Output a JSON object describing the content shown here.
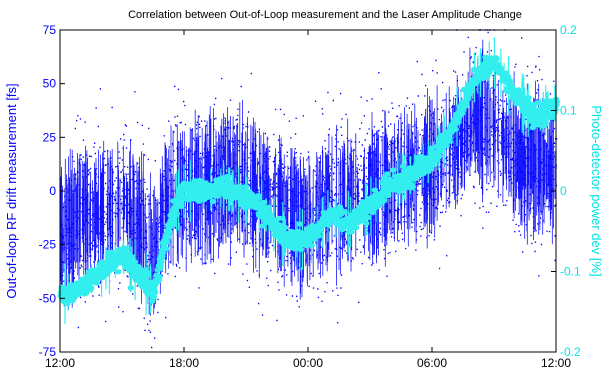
{
  "chart_data": {
    "type": "scatter",
    "title": "Correlation between Out-of-Loop measurement and the Laser Amplitude Change",
    "xlabel": "",
    "x_tick_labels": [
      "12:00",
      "18:00",
      "00:00",
      "06:00",
      "12:00"
    ],
    "x_range": [
      "12:00",
      "12:00 (+24 h)"
    ],
    "grid": false,
    "axes": [
      {
        "side": "left",
        "label": "Out-of-loop RF drift measurement [fs]",
        "color": "#0000ff",
        "ylim": [
          -75,
          75
        ],
        "ticks": [
          75,
          50,
          25,
          0,
          -25,
          -50,
          -75
        ]
      },
      {
        "side": "right",
        "label": "Photo-detector power dev [%]",
        "color": "#00e5e5",
        "ylim": [
          -0.2,
          0.2
        ],
        "ticks": [
          "0.2",
          "0.1",
          "0",
          "-0.1",
          "-0.2"
        ]
      }
    ],
    "series": [
      {
        "axis": "left",
        "color": "#0000ff",
        "marker": "dot",
        "trend_points": [
          {
            "x": "12:00",
            "y": -20
          },
          {
            "x": "13:00",
            "y": -10
          },
          {
            "x": "14:00",
            "y": -12
          },
          {
            "x": "15:00",
            "y": -5
          },
          {
            "x": "16:00",
            "y": -18
          },
          {
            "x": "16:30",
            "y": -30
          },
          {
            "x": "17:00",
            "y": -10
          },
          {
            "x": "18:00",
            "y": 0
          },
          {
            "x": "19:00",
            "y": 2
          },
          {
            "x": "20:00",
            "y": 5
          },
          {
            "x": "21:00",
            "y": 3
          },
          {
            "x": "22:00",
            "y": -5
          },
          {
            "x": "23:00",
            "y": -10
          },
          {
            "x": "00:00",
            "y": -15
          },
          {
            "x": "01:00",
            "y": -5
          },
          {
            "x": "02:00",
            "y": -5
          },
          {
            "x": "03:00",
            "y": -3
          },
          {
            "x": "04:00",
            "y": 5
          },
          {
            "x": "05:00",
            "y": 8
          },
          {
            "x": "06:00",
            "y": 10
          },
          {
            "x": "07:00",
            "y": 20
          },
          {
            "x": "08:00",
            "y": 35
          },
          {
            "x": "09:00",
            "y": 30
          },
          {
            "x": "10:00",
            "y": 15
          },
          {
            "x": "11:00",
            "y": 12
          },
          {
            "x": "12:00",
            "y": 10
          }
        ]
      },
      {
        "axis": "right",
        "color": "#33eeee",
        "marker": "dot",
        "trend_points": [
          {
            "x": "12:00",
            "y": -0.13
          },
          {
            "x": "13:00",
            "y": -0.12
          },
          {
            "x": "14:00",
            "y": -0.1
          },
          {
            "x": "15:00",
            "y": -0.08
          },
          {
            "x": "16:00",
            "y": -0.11
          },
          {
            "x": "16:30",
            "y": -0.125
          },
          {
            "x": "17:00",
            "y": -0.07
          },
          {
            "x": "17:30",
            "y": -0.02
          },
          {
            "x": "18:00",
            "y": 0.0
          },
          {
            "x": "19:00",
            "y": 0.0
          },
          {
            "x": "20:00",
            "y": 0.005
          },
          {
            "x": "21:00",
            "y": -0.01
          },
          {
            "x": "22:00",
            "y": -0.03
          },
          {
            "x": "23:00",
            "y": -0.06
          },
          {
            "x": "00:00",
            "y": -0.06
          },
          {
            "x": "01:00",
            "y": -0.03
          },
          {
            "x": "02:00",
            "y": -0.04
          },
          {
            "x": "03:00",
            "y": -0.02
          },
          {
            "x": "04:00",
            "y": 0.01
          },
          {
            "x": "05:00",
            "y": 0.02
          },
          {
            "x": "06:00",
            "y": 0.04
          },
          {
            "x": "07:00",
            "y": 0.08
          },
          {
            "x": "08:00",
            "y": 0.14
          },
          {
            "x": "09:00",
            "y": 0.16
          },
          {
            "x": "10:00",
            "y": 0.12
          },
          {
            "x": "11:00",
            "y": 0.09
          },
          {
            "x": "12:00",
            "y": 0.11
          }
        ]
      }
    ]
  }
}
